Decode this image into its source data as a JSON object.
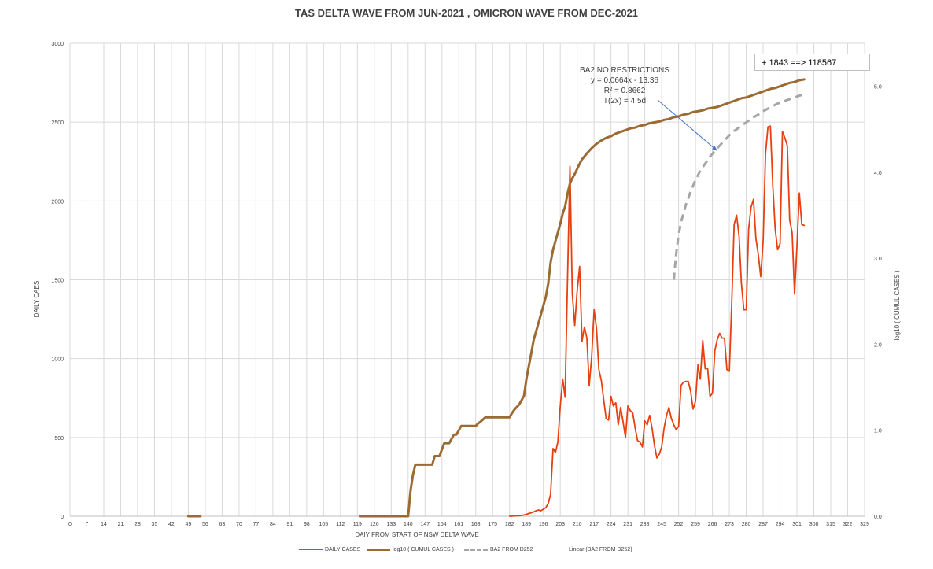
{
  "chart_data": {
    "type": "line",
    "title": "TAS DELTA WAVE FROM JUN-2021 , OMICRON WAVE FROM DEC-2021",
    "xlabel": "DAIY FROM START OF NSW DELTA WAVE",
    "ylabel": "DAILY CAES",
    "y2label": "log10 ( CUMUL CASES )",
    "xlim": [
      0,
      329
    ],
    "ylim": [
      0,
      3000
    ],
    "y2lim": [
      0,
      5.5
    ],
    "x_ticks": [
      0,
      7,
      14,
      21,
      28,
      35,
      42,
      49,
      56,
      63,
      70,
      77,
      84,
      91,
      98,
      105,
      112,
      119,
      126,
      133,
      140,
      147,
      154,
      161,
      168,
      175,
      182,
      189,
      196,
      203,
      210,
      217,
      224,
      231,
      238,
      245,
      252,
      259,
      266,
      273,
      280,
      287,
      294,
      301,
      308,
      315,
      322,
      329
    ],
    "y_ticks": [
      0,
      500,
      1000,
      1500,
      2000,
      2500,
      3000
    ],
    "y2_ticks": [
      "0.0",
      "1.0",
      "2.0",
      "3.0",
      "4.0",
      "5.0"
    ],
    "grid": "vertical",
    "legend_position": "bottom",
    "series": [
      {
        "name": "DAILY CASES",
        "color": "#e84010",
        "axis": "left",
        "points": [
          [
            182,
            0
          ],
          [
            184,
            2
          ],
          [
            186,
            3
          ],
          [
            188,
            8
          ],
          [
            189,
            12
          ],
          [
            190,
            18
          ],
          [
            191,
            22
          ],
          [
            192,
            28
          ],
          [
            193,
            35
          ],
          [
            194,
            40
          ],
          [
            195,
            35
          ],
          [
            196,
            45
          ],
          [
            197,
            55
          ],
          [
            198,
            80
          ],
          [
            199,
            140
          ],
          [
            200,
            430
          ],
          [
            201,
            405
          ],
          [
            202,
            470
          ],
          [
            203,
            700
          ],
          [
            204,
            870
          ],
          [
            205,
            755
          ],
          [
            206,
            1500
          ],
          [
            207,
            2220
          ],
          [
            208,
            1410
          ],
          [
            209,
            1210
          ],
          [
            210,
            1430
          ],
          [
            211,
            1585
          ],
          [
            212,
            1110
          ],
          [
            213,
            1200
          ],
          [
            214,
            1130
          ],
          [
            215,
            830
          ],
          [
            216,
            1010
          ],
          [
            217,
            1310
          ],
          [
            218,
            1195
          ],
          [
            219,
            930
          ],
          [
            220,
            860
          ],
          [
            221,
            740
          ],
          [
            222,
            620
          ],
          [
            223,
            610
          ],
          [
            224,
            760
          ],
          [
            225,
            700
          ],
          [
            226,
            720
          ],
          [
            227,
            580
          ],
          [
            228,
            690
          ],
          [
            229,
            600
          ],
          [
            230,
            500
          ],
          [
            231,
            700
          ],
          [
            232,
            670
          ],
          [
            233,
            655
          ],
          [
            234,
            560
          ],
          [
            235,
            480
          ],
          [
            236,
            470
          ],
          [
            237,
            440
          ],
          [
            238,
            605
          ],
          [
            239,
            580
          ],
          [
            240,
            640
          ],
          [
            241,
            560
          ],
          [
            242,
            450
          ],
          [
            243,
            370
          ],
          [
            244,
            395
          ],
          [
            245,
            440
          ],
          [
            246,
            560
          ],
          [
            247,
            640
          ],
          [
            248,
            690
          ],
          [
            249,
            620
          ],
          [
            250,
            580
          ],
          [
            251,
            550
          ],
          [
            252,
            570
          ],
          [
            253,
            830
          ],
          [
            254,
            850
          ],
          [
            255,
            855
          ],
          [
            256,
            855
          ],
          [
            257,
            790
          ],
          [
            258,
            680
          ],
          [
            259,
            730
          ],
          [
            260,
            960
          ],
          [
            261,
            870
          ],
          [
            262,
            1115
          ],
          [
            263,
            935
          ],
          [
            264,
            940
          ],
          [
            265,
            760
          ],
          [
            266,
            780
          ],
          [
            267,
            1050
          ],
          [
            268,
            1120
          ],
          [
            269,
            1160
          ],
          [
            270,
            1130
          ],
          [
            271,
            1130
          ],
          [
            272,
            930
          ],
          [
            273,
            920
          ],
          [
            274,
            1360
          ],
          [
            275,
            1850
          ],
          [
            276,
            1910
          ],
          [
            277,
            1780
          ],
          [
            278,
            1480
          ],
          [
            279,
            1310
          ],
          [
            280,
            1310
          ],
          [
            281,
            1820
          ],
          [
            282,
            1960
          ],
          [
            283,
            2010
          ],
          [
            284,
            1760
          ],
          [
            285,
            1660
          ],
          [
            286,
            1520
          ],
          [
            287,
            1750
          ],
          [
            288,
            2300
          ],
          [
            289,
            2470
          ],
          [
            290,
            2475
          ],
          [
            291,
            2100
          ],
          [
            292,
            1820
          ],
          [
            293,
            1690
          ],
          [
            294,
            1730
          ],
          [
            295,
            2440
          ],
          [
            296,
            2400
          ],
          [
            297,
            2350
          ],
          [
            298,
            1880
          ],
          [
            299,
            1800
          ],
          [
            300,
            1410
          ],
          [
            301,
            1710
          ],
          [
            302,
            2050
          ],
          [
            303,
            1850
          ],
          [
            304,
            1845
          ]
        ]
      },
      {
        "name": "log10 ( CUMUL CASES )",
        "color": "#9c6a33",
        "axis": "right",
        "points": [
          [
            49,
            0
          ],
          [
            54,
            0
          ],
          [
            120,
            0
          ],
          [
            140,
            0
          ],
          [
            141,
            0.3
          ],
          [
            142,
            0.48
          ],
          [
            143,
            0.6
          ],
          [
            145,
            0.6
          ],
          [
            147,
            0.6
          ],
          [
            149,
            0.6
          ],
          [
            150,
            0.6
          ],
          [
            151,
            0.7
          ],
          [
            153,
            0.7
          ],
          [
            154,
            0.78
          ],
          [
            155,
            0.85
          ],
          [
            157,
            0.85
          ],
          [
            158,
            0.9
          ],
          [
            159,
            0.95
          ],
          [
            160,
            0.95
          ],
          [
            161,
            1.0
          ],
          [
            162,
            1.05
          ],
          [
            168,
            1.05
          ],
          [
            169,
            1.08
          ],
          [
            170,
            1.1
          ],
          [
            172,
            1.15
          ],
          [
            174,
            1.15
          ],
          [
            182,
            1.15
          ],
          [
            183,
            1.2
          ],
          [
            184,
            1.24
          ],
          [
            186,
            1.3
          ],
          [
            188,
            1.4
          ],
          [
            189,
            1.6
          ],
          [
            190,
            1.75
          ],
          [
            191,
            1.9
          ],
          [
            192,
            2.05
          ],
          [
            194,
            2.25
          ],
          [
            196,
            2.45
          ],
          [
            197,
            2.55
          ],
          [
            198,
            2.7
          ],
          [
            199,
            2.95
          ],
          [
            200,
            3.1
          ],
          [
            202,
            3.3
          ],
          [
            203,
            3.4
          ],
          [
            204,
            3.52
          ],
          [
            205,
            3.6
          ],
          [
            206,
            3.75
          ],
          [
            207,
            3.87
          ],
          [
            208,
            3.93
          ],
          [
            209,
            3.98
          ],
          [
            210,
            4.04
          ],
          [
            211,
            4.1
          ],
          [
            212,
            4.15
          ],
          [
            214,
            4.22
          ],
          [
            216,
            4.28
          ],
          [
            218,
            4.33
          ],
          [
            220,
            4.37
          ],
          [
            222,
            4.4
          ],
          [
            224,
            4.42
          ],
          [
            226,
            4.45
          ],
          [
            228,
            4.47
          ],
          [
            230,
            4.49
          ],
          [
            232,
            4.51
          ],
          [
            234,
            4.52
          ],
          [
            236,
            4.54
          ],
          [
            238,
            4.55
          ],
          [
            240,
            4.57
          ],
          [
            242,
            4.58
          ],
          [
            244,
            4.59
          ],
          [
            246,
            4.61
          ],
          [
            248,
            4.62
          ],
          [
            250,
            4.64
          ],
          [
            252,
            4.65
          ],
          [
            254,
            4.67
          ],
          [
            256,
            4.68
          ],
          [
            258,
            4.7
          ],
          [
            260,
            4.71
          ],
          [
            262,
            4.72
          ],
          [
            264,
            4.74
          ],
          [
            266,
            4.75
          ],
          [
            268,
            4.76
          ],
          [
            270,
            4.78
          ],
          [
            272,
            4.8
          ],
          [
            274,
            4.82
          ],
          [
            276,
            4.84
          ],
          [
            278,
            4.86
          ],
          [
            280,
            4.87
          ],
          [
            282,
            4.89
          ],
          [
            284,
            4.91
          ],
          [
            286,
            4.93
          ],
          [
            288,
            4.95
          ],
          [
            290,
            4.97
          ],
          [
            292,
            4.98
          ],
          [
            294,
            5.0
          ],
          [
            296,
            5.02
          ],
          [
            298,
            5.04
          ],
          [
            300,
            5.05
          ],
          [
            302,
            5.07
          ],
          [
            304,
            5.08
          ]
        ]
      },
      {
        "name": "BA2 FROM D252",
        "color": "#a6a6a6",
        "axis": "right",
        "dashed": true,
        "points": [
          [
            250,
            2.75
          ],
          [
            251,
            3.05
          ],
          [
            252,
            3.27
          ],
          [
            253,
            3.42
          ],
          [
            255,
            3.62
          ],
          [
            257,
            3.78
          ],
          [
            259,
            3.91
          ],
          [
            261,
            4.02
          ],
          [
            263,
            4.1
          ],
          [
            265,
            4.18
          ],
          [
            267,
            4.25
          ],
          [
            269,
            4.31
          ],
          [
            271,
            4.37
          ],
          [
            273,
            4.43
          ],
          [
            275,
            4.48
          ],
          [
            277,
            4.52
          ],
          [
            279,
            4.56
          ],
          [
            281,
            4.6
          ],
          [
            283,
            4.64
          ],
          [
            285,
            4.67
          ],
          [
            287,
            4.71
          ],
          [
            289,
            4.74
          ],
          [
            291,
            4.77
          ],
          [
            293,
            4.8
          ],
          [
            295,
            4.82
          ],
          [
            297,
            4.84
          ],
          [
            299,
            4.86
          ],
          [
            301,
            4.88
          ],
          [
            303,
            4.9
          ]
        ]
      },
      {
        "name": "Linear (BA2 FROM D252)",
        "color": "#4472c4",
        "axis": "right",
        "points": []
      }
    ],
    "annotations": {
      "callout": "+ 1843  ==>  118567",
      "trend_lines": [
        "BA2 NO RESTRICTIONS",
        "y = 0.0664x - 13.36",
        "R² = 0.8662",
        "T(2x)  = 4.5d"
      ]
    }
  }
}
